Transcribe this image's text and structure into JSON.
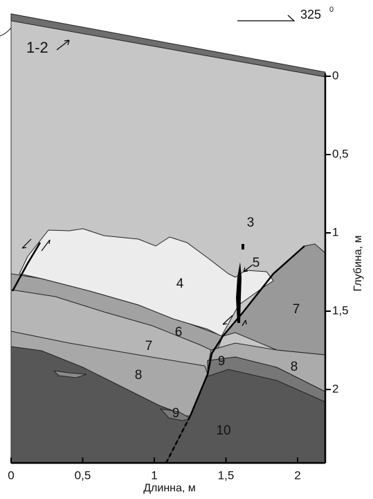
{
  "azimuth": {
    "value": "325",
    "degree": "0"
  },
  "surface_label": "1-2",
  "layer_labels": [
    "3",
    "4",
    "5",
    "6",
    "7",
    "7",
    "8",
    "8",
    "9",
    "9",
    "10"
  ],
  "x_axis": {
    "label": "Длинна, м",
    "ticks": [
      "0",
      "0,5",
      "1",
      "1,5",
      "2"
    ]
  },
  "y_axis": {
    "label": "Глубина, м",
    "ticks": [
      "0",
      "0,5",
      "1",
      "1,5",
      "2"
    ]
  }
}
